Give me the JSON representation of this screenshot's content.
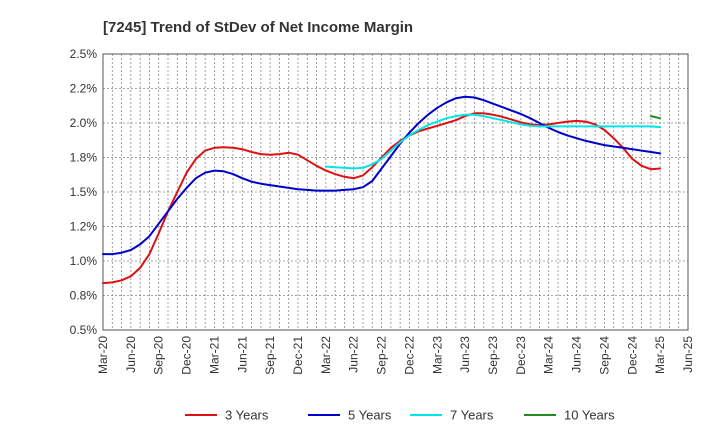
{
  "chart_data": {
    "type": "line",
    "title": "[7245]  Trend of StDev of Net Income Margin",
    "xlabel": "",
    "ylabel": "",
    "x_ticks": [
      "Mar-20",
      "Jun-20",
      "Sep-20",
      "Dec-20",
      "Mar-21",
      "Jun-21",
      "Sep-21",
      "Dec-21",
      "Mar-22",
      "Jun-22",
      "Sep-22",
      "Dec-22",
      "Mar-23",
      "Jun-23",
      "Sep-23",
      "Dec-23",
      "Mar-24",
      "Jun-24",
      "Sep-24",
      "Dec-24",
      "Mar-25",
      "Jun-25"
    ],
    "y_ticks": [
      "0.5%",
      "0.8%",
      "1.0%",
      "1.2%",
      "1.5%",
      "1.8%",
      "2.0%",
      "2.2%",
      "2.5%"
    ],
    "ylim": [
      0.5,
      2.5
    ],
    "y_unit": "%",
    "grid": true,
    "legend_position": "bottom",
    "series": [
      {
        "name": "3 Years",
        "color": "#dd1111",
        "points": [
          [
            "Mar-20",
            0.84
          ],
          [
            "Apr-20",
            0.845
          ],
          [
            "May-20",
            0.86
          ],
          [
            "Jun-20",
            0.89
          ],
          [
            "Jul-20",
            0.95
          ],
          [
            "Aug-20",
            1.05
          ],
          [
            "Sep-20",
            1.2
          ],
          [
            "Oct-20",
            1.36
          ],
          [
            "Nov-20",
            1.5
          ],
          [
            "Dec-20",
            1.64
          ],
          [
            "Jan-21",
            1.74
          ],
          [
            "Feb-21",
            1.8
          ],
          [
            "Mar-21",
            1.82
          ],
          [
            "Apr-21",
            1.825
          ],
          [
            "May-21",
            1.82
          ],
          [
            "Jun-21",
            1.81
          ],
          [
            "Jul-21",
            1.79
          ],
          [
            "Aug-21",
            1.775
          ],
          [
            "Sep-21",
            1.77
          ],
          [
            "Oct-21",
            1.775
          ],
          [
            "Nov-21",
            1.785
          ],
          [
            "Dec-21",
            1.77
          ],
          [
            "Jan-22",
            1.73
          ],
          [
            "Feb-22",
            1.69
          ],
          [
            "Mar-22",
            1.655
          ],
          [
            "Apr-22",
            1.63
          ],
          [
            "May-22",
            1.61
          ],
          [
            "Jun-22",
            1.6
          ],
          [
            "Jul-22",
            1.62
          ],
          [
            "Aug-22",
            1.68
          ],
          [
            "Sep-22",
            1.75
          ],
          [
            "Oct-22",
            1.82
          ],
          [
            "Nov-22",
            1.87
          ],
          [
            "Dec-22",
            1.91
          ],
          [
            "Jan-23",
            1.94
          ],
          [
            "Feb-23",
            1.96
          ],
          [
            "Mar-23",
            1.98
          ],
          [
            "Apr-23",
            2.0
          ],
          [
            "May-23",
            2.02
          ],
          [
            "Jun-23",
            2.05
          ],
          [
            "Jul-23",
            2.07
          ],
          [
            "Aug-23",
            2.07
          ],
          [
            "Sep-23",
            2.06
          ],
          [
            "Oct-23",
            2.045
          ],
          [
            "Nov-23",
            2.025
          ],
          [
            "Dec-23",
            2.005
          ],
          [
            "Jan-24",
            1.99
          ],
          [
            "Feb-24",
            1.985
          ],
          [
            "Mar-24",
            1.99
          ],
          [
            "Apr-24",
            2.0
          ],
          [
            "May-24",
            2.01
          ],
          [
            "Jun-24",
            2.015
          ],
          [
            "Jul-24",
            2.01
          ],
          [
            "Aug-24",
            1.99
          ],
          [
            "Sep-24",
            1.95
          ],
          [
            "Oct-24",
            1.89
          ],
          [
            "Nov-24",
            1.82
          ],
          [
            "Dec-24",
            1.74
          ],
          [
            "Jan-25",
            1.69
          ],
          [
            "Feb-25",
            1.665
          ],
          [
            "Mar-25",
            1.67
          ]
        ]
      },
      {
        "name": "5 Years",
        "color": "#0000cc",
        "points": [
          [
            "Mar-20",
            1.05
          ],
          [
            "Apr-20",
            1.05
          ],
          [
            "May-20",
            1.06
          ],
          [
            "Jun-20",
            1.08
          ],
          [
            "Jul-20",
            1.12
          ],
          [
            "Aug-20",
            1.18
          ],
          [
            "Sep-20",
            1.27
          ],
          [
            "Oct-20",
            1.36
          ],
          [
            "Nov-20",
            1.45
          ],
          [
            "Dec-20",
            1.53
          ],
          [
            "Jan-21",
            1.6
          ],
          [
            "Feb-21",
            1.64
          ],
          [
            "Mar-21",
            1.655
          ],
          [
            "Apr-21",
            1.65
          ],
          [
            "May-21",
            1.63
          ],
          [
            "Jun-21",
            1.6
          ],
          [
            "Jul-21",
            1.575
          ],
          [
            "Aug-21",
            1.56
          ],
          [
            "Sep-21",
            1.55
          ],
          [
            "Oct-21",
            1.54
          ],
          [
            "Nov-21",
            1.53
          ],
          [
            "Dec-21",
            1.52
          ],
          [
            "Jan-22",
            1.515
          ],
          [
            "Feb-22",
            1.51
          ],
          [
            "Mar-22",
            1.51
          ],
          [
            "Apr-22",
            1.51
          ],
          [
            "May-22",
            1.515
          ],
          [
            "Jun-22",
            1.52
          ],
          [
            "Jul-22",
            1.535
          ],
          [
            "Aug-22",
            1.58
          ],
          [
            "Sep-22",
            1.67
          ],
          [
            "Oct-22",
            1.76
          ],
          [
            "Nov-22",
            1.85
          ],
          [
            "Dec-22",
            1.93
          ],
          [
            "Jan-23",
            2.0
          ],
          [
            "Feb-23",
            2.06
          ],
          [
            "Mar-23",
            2.11
          ],
          [
            "Apr-23",
            2.15
          ],
          [
            "May-23",
            2.18
          ],
          [
            "Jun-23",
            2.19
          ],
          [
            "Jul-23",
            2.185
          ],
          [
            "Aug-23",
            2.165
          ],
          [
            "Sep-23",
            2.14
          ],
          [
            "Oct-23",
            2.115
          ],
          [
            "Nov-23",
            2.09
          ],
          [
            "Dec-23",
            2.065
          ],
          [
            "Jan-24",
            2.035
          ],
          [
            "Feb-24",
            2.0
          ],
          [
            "Mar-24",
            1.965
          ],
          [
            "Apr-24",
            1.935
          ],
          [
            "May-24",
            1.91
          ],
          [
            "Jun-24",
            1.89
          ],
          [
            "Jul-24",
            1.87
          ],
          [
            "Aug-24",
            1.855
          ],
          [
            "Sep-24",
            1.84
          ],
          [
            "Oct-24",
            1.83
          ],
          [
            "Nov-24",
            1.82
          ],
          [
            "Dec-24",
            1.81
          ],
          [
            "Jan-25",
            1.8
          ],
          [
            "Feb-25",
            1.79
          ],
          [
            "Mar-25",
            1.78
          ]
        ]
      },
      {
        "name": "7 Years",
        "color": "#00e5e5",
        "points": [
          [
            "Mar-22",
            1.685
          ],
          [
            "Apr-22",
            1.68
          ],
          [
            "May-22",
            1.675
          ],
          [
            "Jun-22",
            1.67
          ],
          [
            "Jul-22",
            1.675
          ],
          [
            "Aug-22",
            1.7
          ],
          [
            "Sep-22",
            1.74
          ],
          [
            "Oct-22",
            1.8
          ],
          [
            "Nov-22",
            1.86
          ],
          [
            "Dec-22",
            1.91
          ],
          [
            "Jan-23",
            1.95
          ],
          [
            "Feb-23",
            1.985
          ],
          [
            "Mar-23",
            2.01
          ],
          [
            "Apr-23",
            2.035
          ],
          [
            "May-23",
            2.05
          ],
          [
            "Jun-23",
            2.06
          ],
          [
            "Jul-23",
            2.06
          ],
          [
            "Aug-23",
            2.05
          ],
          [
            "Sep-23",
            2.035
          ],
          [
            "Oct-23",
            2.02
          ],
          [
            "Nov-23",
            2.005
          ],
          [
            "Dec-23",
            1.99
          ],
          [
            "Jan-24",
            1.98
          ],
          [
            "Feb-24",
            1.975
          ],
          [
            "Mar-24",
            1.975
          ],
          [
            "Apr-24",
            1.975
          ],
          [
            "May-24",
            1.975
          ],
          [
            "Jun-24",
            1.975
          ],
          [
            "Jul-24",
            1.975
          ],
          [
            "Aug-24",
            1.975
          ],
          [
            "Sep-24",
            1.975
          ],
          [
            "Oct-24",
            1.975
          ],
          [
            "Nov-24",
            1.975
          ],
          [
            "Dec-24",
            1.975
          ],
          [
            "Jan-25",
            1.975
          ],
          [
            "Feb-25",
            1.975
          ],
          [
            "Mar-25",
            1.97
          ]
        ]
      },
      {
        "name": "10 Years",
        "color": "#228b22",
        "points": [
          [
            "Feb-25",
            2.05
          ],
          [
            "Mar-25",
            2.035
          ]
        ]
      }
    ]
  }
}
